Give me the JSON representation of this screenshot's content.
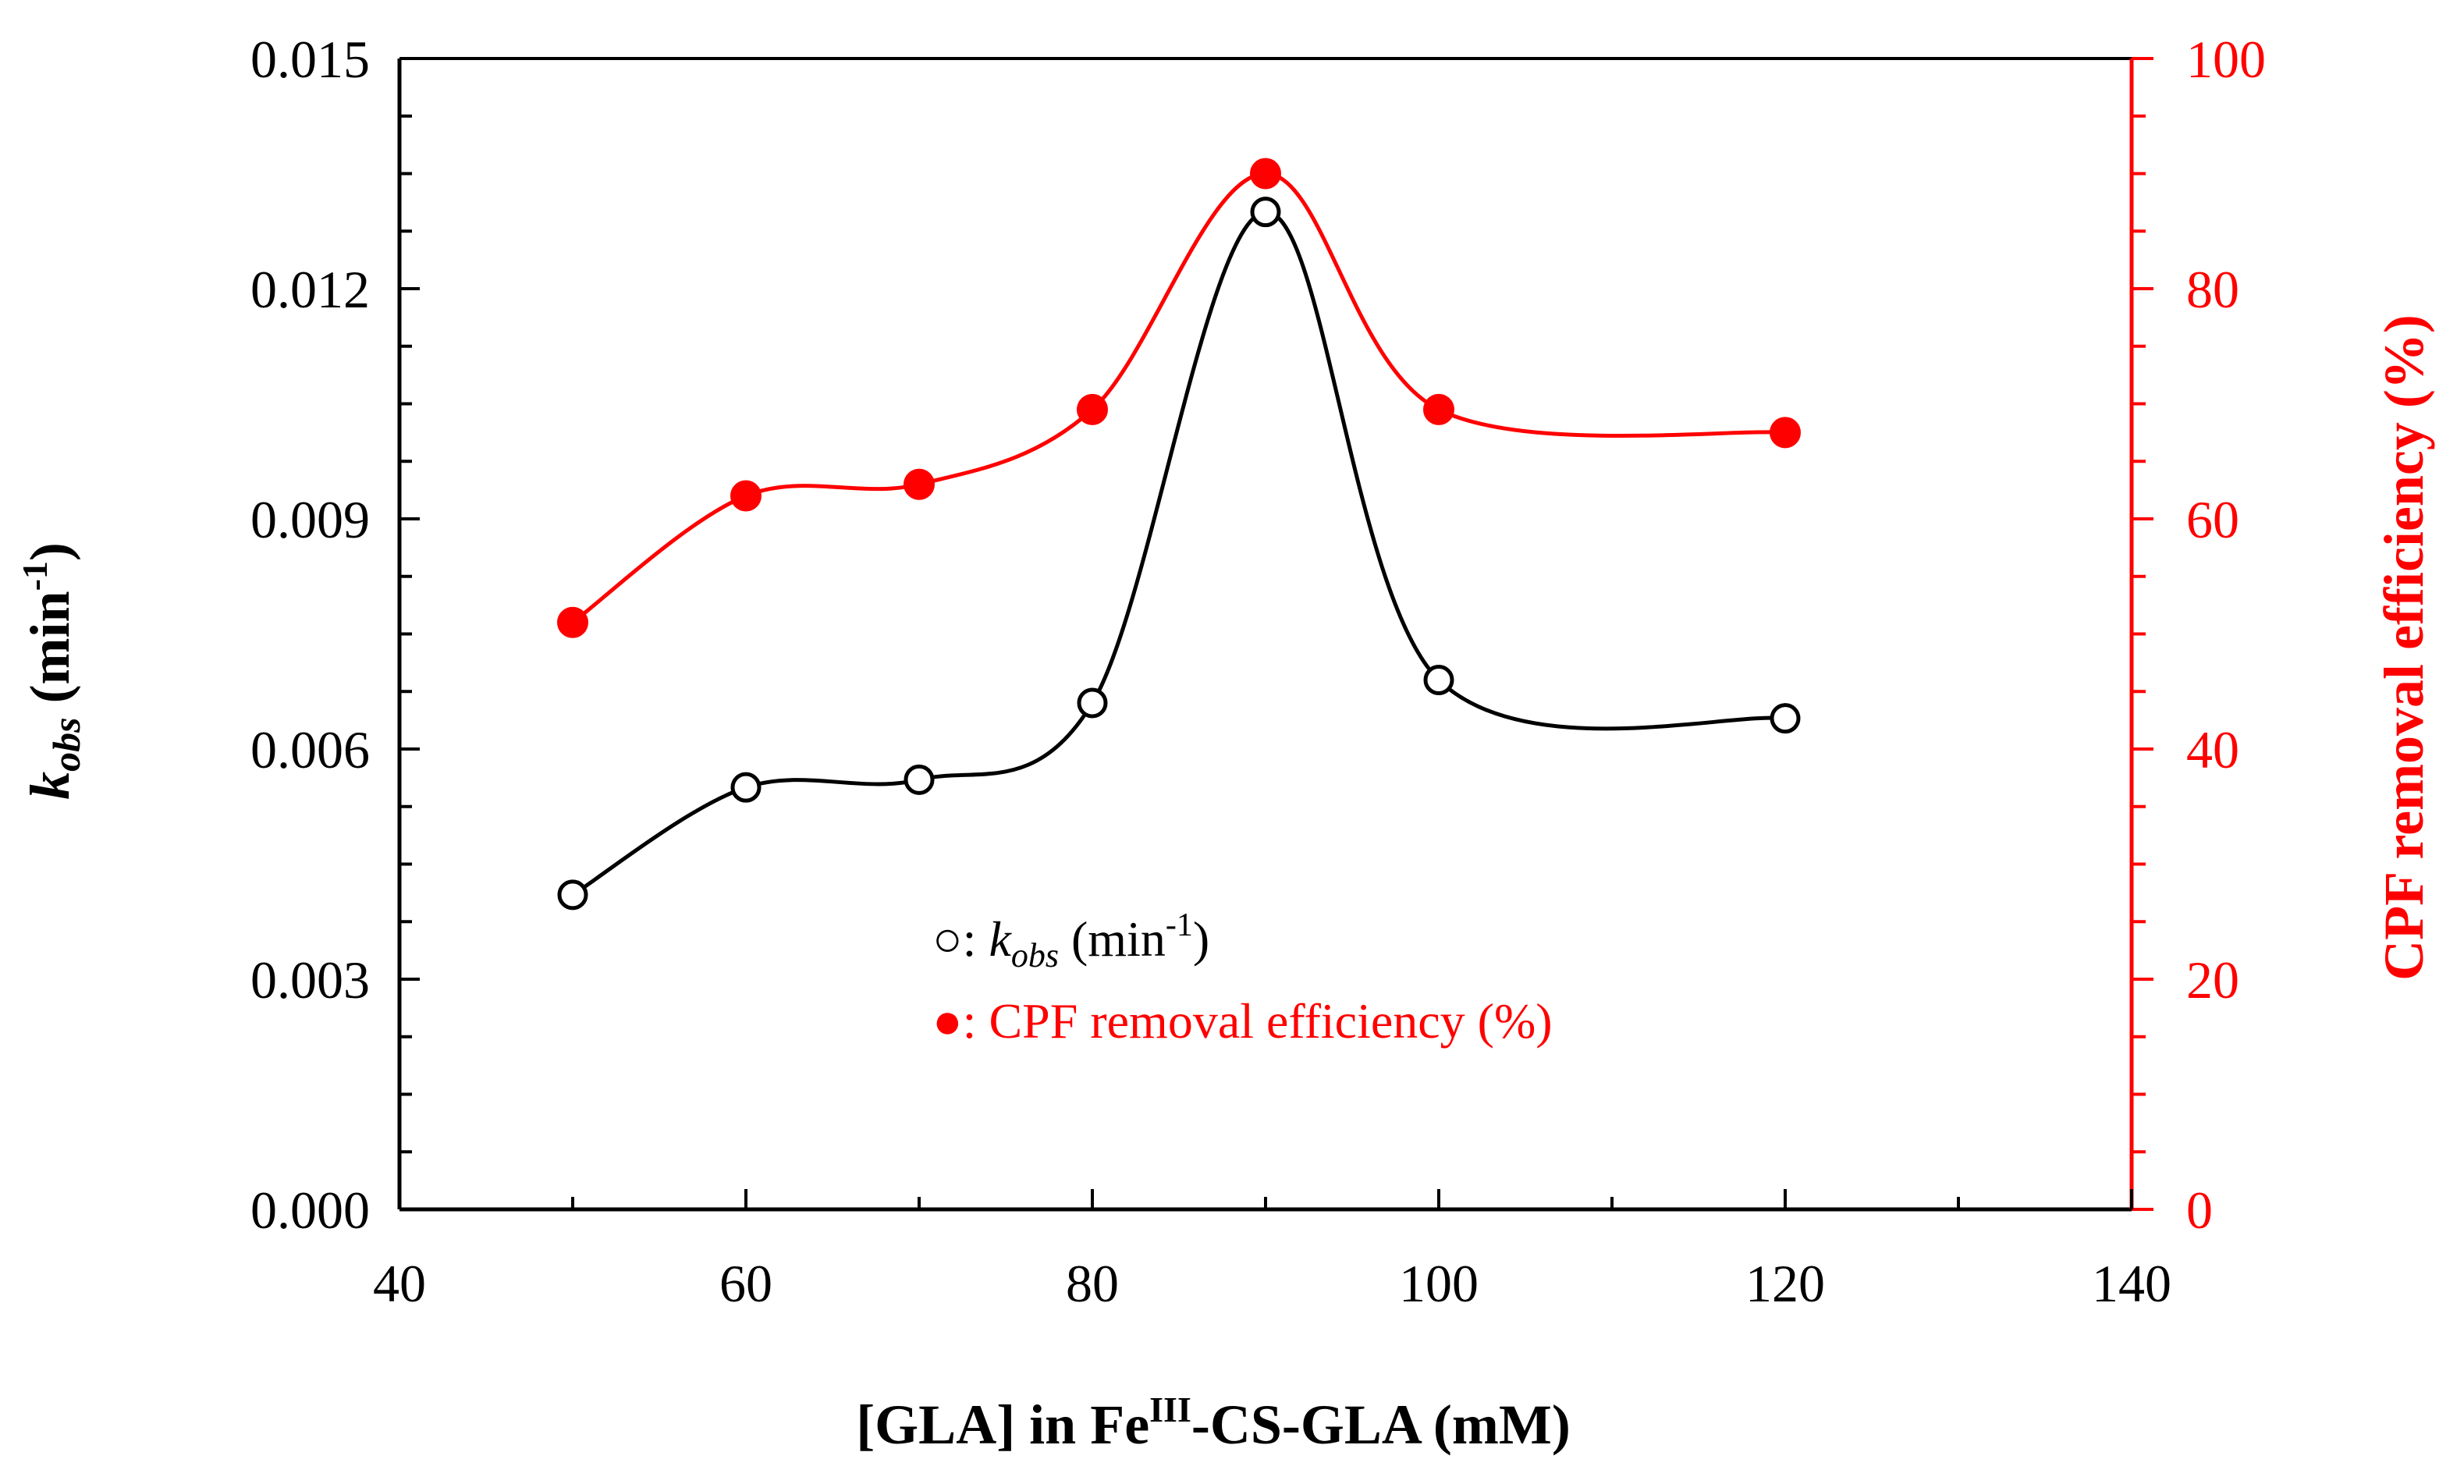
{
  "chart_data": {
    "type": "line",
    "xlabel": {
      "prefix": "[GLA] in Fe",
      "sup": "III",
      "suffix": "-CS-GLA (mM)"
    },
    "ylabel_left": {
      "var": "k",
      "sub": "obs",
      "unit_prefix": " (min",
      "unit_sup": "-1",
      "unit_suffix": ")"
    },
    "ylabel_right": "CPF removal efficiency (%)",
    "xlim": [
      40,
      140
    ],
    "ylim_left": [
      0,
      0.015
    ],
    "ylim_right": [
      0,
      100
    ],
    "x_ticks": [
      "40",
      "60",
      "80",
      "100",
      "120",
      "140"
    ],
    "x_tick_values": [
      40,
      60,
      80,
      100,
      120,
      140
    ],
    "y_left_ticks": [
      "0.000",
      "0.003",
      "0.006",
      "0.009",
      "0.012",
      "0.015"
    ],
    "y_left_tick_values": [
      0,
      0.003,
      0.006,
      0.009,
      0.012,
      0.015
    ],
    "y_right_ticks": [
      "0",
      "20",
      "40",
      "60",
      "80",
      "100"
    ],
    "y_right_tick_values": [
      0,
      20,
      40,
      60,
      80,
      100
    ],
    "x": [
      50,
      60,
      70,
      80,
      90,
      100,
      120
    ],
    "series": [
      {
        "name": "kobs",
        "axis": "left",
        "marker": "open-circle",
        "color": "#000000",
        "values": [
          0.0041,
          0.0055,
          0.0056,
          0.0066,
          0.013,
          0.0069,
          0.0064
        ]
      },
      {
        "name": "CPF removal efficiency",
        "axis": "right",
        "marker": "filled-circle",
        "color": "#ff0000",
        "values": [
          51,
          62,
          63,
          69.5,
          90,
          69.5,
          67.5
        ]
      }
    ],
    "legend": {
      "placement": "center",
      "items": [
        {
          "symbol": "○",
          "sep": ": ",
          "var": "k",
          "sub": "obs",
          "unit_prefix": " (min",
          "unit_sup": "-1",
          "unit_suffix": ")"
        },
        {
          "symbol": "●",
          "label": ": CPF removal efficiency (%)"
        }
      ]
    },
    "colors": {
      "left_axis": "#000000",
      "right_axis": "#ff0000"
    }
  }
}
